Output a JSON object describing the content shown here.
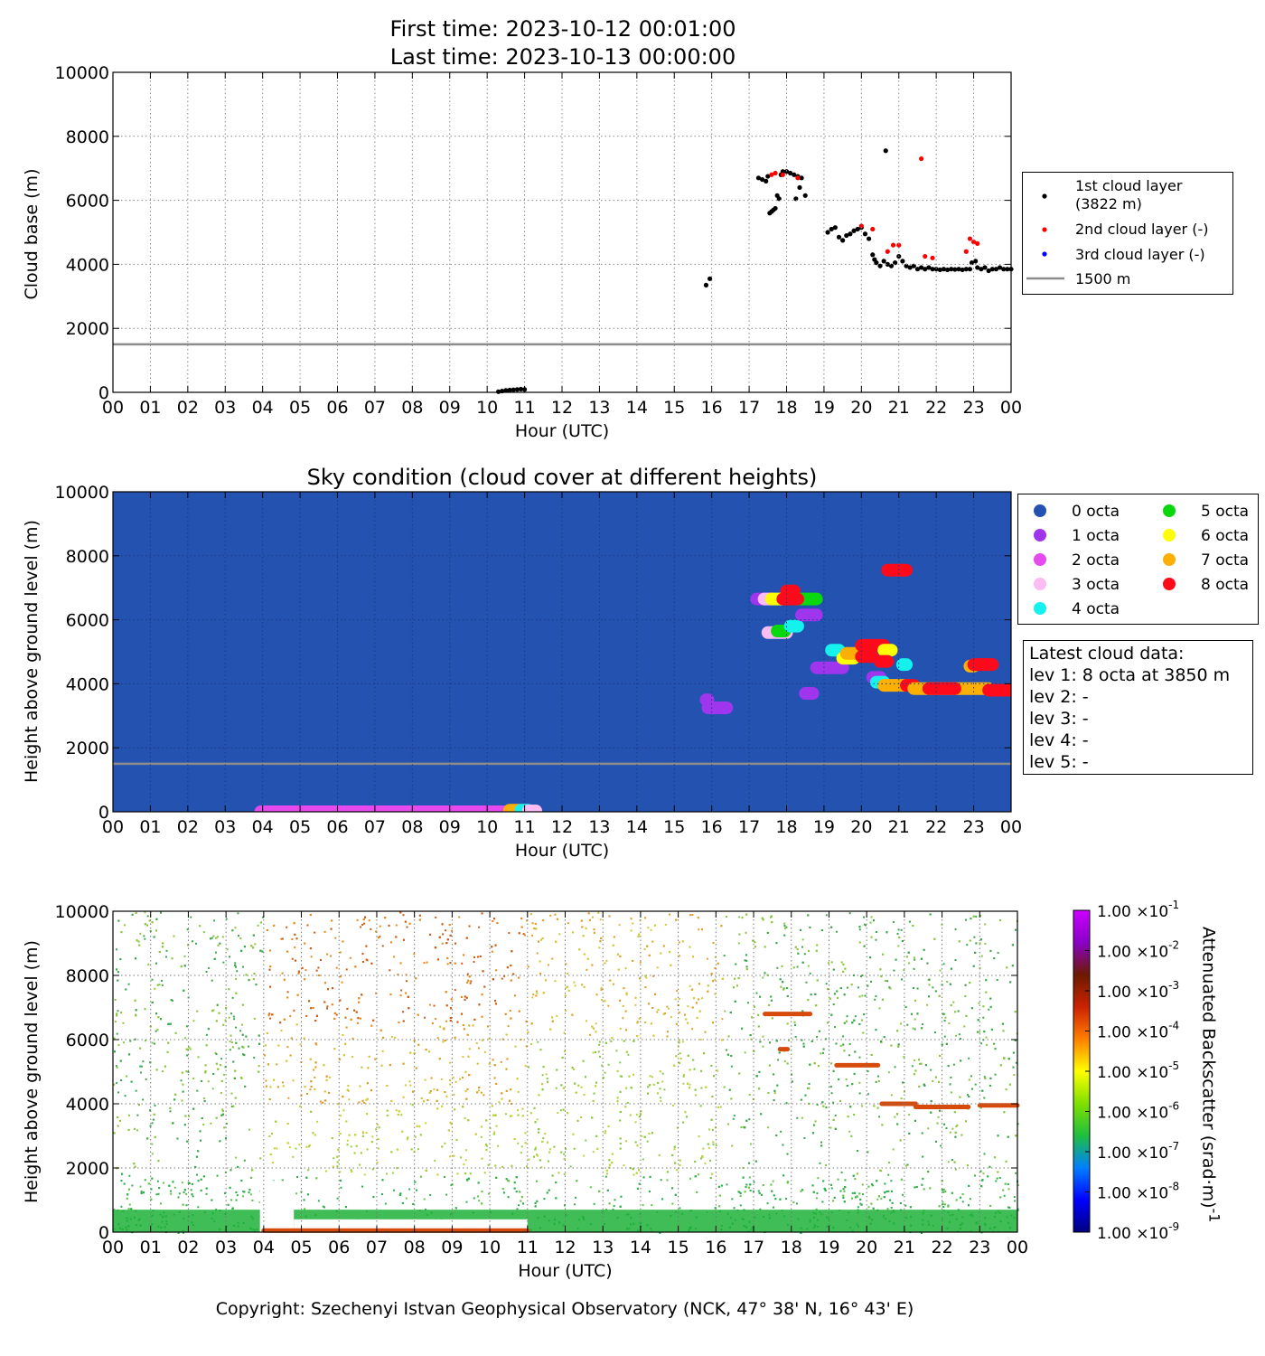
{
  "header": {
    "first_time": "First time: 2023-10-12 00:01:00",
    "last_time": "Last time: 2023-10-13 00:00:00"
  },
  "colors": {
    "sky_background": "#2452b0",
    "threshold_line": "#8c8c8c",
    "layer1": "#000000",
    "layer2": "#ff0000",
    "layer3": "#0000ff"
  },
  "chart_data": [
    {
      "type": "scatter",
      "title": "",
      "xlabel": "Hour (UTC)",
      "ylabel": "Cloud base (m)",
      "xlim": [
        0,
        24
      ],
      "ylim": [
        0,
        10000
      ],
      "x_ticks": [
        "00",
        "01",
        "02",
        "03",
        "04",
        "05",
        "06",
        "07",
        "08",
        "09",
        "10",
        "11",
        "12",
        "13",
        "14",
        "15",
        "16",
        "17",
        "18",
        "19",
        "20",
        "21",
        "22",
        "23",
        "00"
      ],
      "y_ticks": [
        0,
        2000,
        4000,
        6000,
        8000,
        10000
      ],
      "grid": true,
      "legend_placement": "right",
      "threshold": 1500,
      "series": [
        {
          "name": "1st cloud layer\n(3822 m)",
          "color": "#000000",
          "points": [
            [
              10.3,
              20
            ],
            [
              10.4,
              40
            ],
            [
              10.5,
              60
            ],
            [
              10.6,
              70
            ],
            [
              10.7,
              80
            ],
            [
              10.8,
              90
            ],
            [
              10.9,
              100
            ],
            [
              11.0,
              90
            ],
            [
              15.85,
              3350
            ],
            [
              15.95,
              3550
            ],
            [
              17.25,
              6700
            ],
            [
              17.35,
              6650
            ],
            [
              17.45,
              6600
            ],
            [
              17.5,
              6750
            ],
            [
              17.55,
              5600
            ],
            [
              17.6,
              5650
            ],
            [
              17.65,
              5700
            ],
            [
              17.7,
              5750
            ],
            [
              17.75,
              6150
            ],
            [
              17.8,
              6050
            ],
            [
              17.85,
              6800
            ],
            [
              17.9,
              6900
            ],
            [
              18.0,
              6900
            ],
            [
              18.1,
              6850
            ],
            [
              18.2,
              6800
            ],
            [
              18.25,
              6050
            ],
            [
              18.3,
              6750
            ],
            [
              18.35,
              6400
            ],
            [
              18.4,
              6700
            ],
            [
              18.5,
              6150
            ],
            [
              19.1,
              5000
            ],
            [
              19.2,
              5100
            ],
            [
              19.3,
              5150
            ],
            [
              19.4,
              4850
            ],
            [
              19.5,
              4750
            ],
            [
              19.6,
              4900
            ],
            [
              19.7,
              4950
            ],
            [
              19.8,
              5050
            ],
            [
              19.9,
              5100
            ],
            [
              20.0,
              5150
            ],
            [
              20.1,
              4950
            ],
            [
              20.2,
              4800
            ],
            [
              20.3,
              4300
            ],
            [
              20.35,
              4150
            ],
            [
              20.4,
              4050
            ],
            [
              20.5,
              3950
            ],
            [
              20.6,
              4100
            ],
            [
              20.65,
              7550
            ],
            [
              20.7,
              4000
            ],
            [
              20.8,
              3950
            ],
            [
              20.9,
              4050
            ],
            [
              21.0,
              4250
            ],
            [
              21.1,
              4100
            ],
            [
              21.2,
              3950
            ],
            [
              21.3,
              3900
            ],
            [
              21.4,
              3950
            ],
            [
              21.5,
              3850
            ],
            [
              21.6,
              3900
            ],
            [
              21.7,
              3850
            ],
            [
              21.8,
              3900
            ],
            [
              21.9,
              3850
            ],
            [
              22.0,
              3850
            ],
            [
              22.1,
              3830
            ],
            [
              22.2,
              3850
            ],
            [
              22.3,
              3830
            ],
            [
              22.4,
              3850
            ],
            [
              22.5,
              3840
            ],
            [
              22.6,
              3850
            ],
            [
              22.7,
              3830
            ],
            [
              22.8,
              3850
            ],
            [
              22.9,
              3850
            ],
            [
              22.95,
              4050
            ],
            [
              23.05,
              4100
            ],
            [
              23.1,
              3900
            ],
            [
              23.2,
              3850
            ],
            [
              23.3,
              3900
            ],
            [
              23.4,
              3800
            ],
            [
              23.5,
              3850
            ],
            [
              23.6,
              3850
            ],
            [
              23.7,
              3900
            ],
            [
              23.8,
              3850
            ],
            [
              23.9,
              3850
            ],
            [
              24.0,
              3850
            ]
          ]
        },
        {
          "name": "2nd cloud layer (-)",
          "color": "#ff0000",
          "points": [
            [
              17.6,
              6800
            ],
            [
              17.7,
              6850
            ],
            [
              17.9,
              6800
            ],
            [
              18.3,
              6700
            ],
            [
              20.0,
              5200
            ],
            [
              20.3,
              5100
            ],
            [
              20.7,
              4400
            ],
            [
              20.85,
              4600
            ],
            [
              21.0,
              4600
            ],
            [
              21.6,
              7300
            ],
            [
              21.7,
              4250
            ],
            [
              21.9,
              4200
            ],
            [
              22.8,
              4400
            ],
            [
              22.9,
              4800
            ],
            [
              23.0,
              4700
            ],
            [
              23.1,
              4650
            ]
          ]
        },
        {
          "name": "3rd cloud layer (-)",
          "color": "#0000ff",
          "points": []
        },
        {
          "name": "1500 m",
          "color": "#8c8c8c",
          "line_y": 1500
        }
      ]
    },
    {
      "type": "scatter",
      "title": "Sky condition (cloud cover at different heights)",
      "xlabel": "Hour (UTC)",
      "ylabel": "Height above ground level (m)",
      "xlim": [
        0,
        24
      ],
      "ylim": [
        0,
        10000
      ],
      "x_ticks": [
        "00",
        "01",
        "02",
        "03",
        "04",
        "05",
        "06",
        "07",
        "08",
        "09",
        "10",
        "11",
        "12",
        "13",
        "14",
        "15",
        "16",
        "17",
        "18",
        "19",
        "20",
        "21",
        "22",
        "23",
        "00"
      ],
      "y_ticks": [
        0,
        2000,
        4000,
        6000,
        8000,
        10000
      ],
      "grid": true,
      "legend_placement": "right",
      "threshold": 1500,
      "octa_legend": [
        {
          "label": "0 octa",
          "color": "#2452b0"
        },
        {
          "label": "1 octa",
          "color": "#a035ee"
        },
        {
          "label": "2 octa",
          "color": "#e649ee"
        },
        {
          "label": "3 octa",
          "color": "#fbbcf3"
        },
        {
          "label": "4 octa",
          "color": "#15f2ee"
        },
        {
          "label": "5 octa",
          "color": "#0ad80e"
        },
        {
          "label": "6 octa",
          "color": "#fdfd03"
        },
        {
          "label": "7 octa",
          "color": "#fcb005"
        },
        {
          "label": "8 octa",
          "color": "#ff0a1a"
        }
      ],
      "segments": [
        {
          "x0": 3.95,
          "x1": 11.0,
          "y": 0,
          "octa": 2
        },
        {
          "x0": 10.6,
          "x1": 11.0,
          "y": 50,
          "octa": 7
        },
        {
          "x0": 10.9,
          "x1": 11.1,
          "y": 50,
          "octa": 4
        },
        {
          "x0": 11.1,
          "x1": 11.3,
          "y": 30,
          "octa": 3
        },
        {
          "x0": 15.85,
          "x1": 15.9,
          "y": 3500,
          "octa": 1
        },
        {
          "x0": 15.9,
          "x1": 16.4,
          "y": 3250,
          "octa": 1
        },
        {
          "x0": 17.2,
          "x1": 17.6,
          "y": 6650,
          "octa": 1
        },
        {
          "x0": 17.4,
          "x1": 17.6,
          "y": 6650,
          "octa": 3
        },
        {
          "x0": 17.6,
          "x1": 17.9,
          "y": 6650,
          "octa": 6
        },
        {
          "x0": 17.5,
          "x1": 18.0,
          "y": 5600,
          "octa": 3
        },
        {
          "x0": 17.75,
          "x1": 17.95,
          "y": 5650,
          "octa": 5
        },
        {
          "x0": 18.1,
          "x1": 18.3,
          "y": 5800,
          "octa": 4
        },
        {
          "x0": 18.3,
          "x1": 18.8,
          "y": 6650,
          "octa": 5
        },
        {
          "x0": 18.4,
          "x1": 18.8,
          "y": 6150,
          "octa": 1
        },
        {
          "x0": 17.9,
          "x1": 18.3,
          "y": 6650,
          "octa": 8
        },
        {
          "x0": 18.0,
          "x1": 18.2,
          "y": 6900,
          "octa": 8
        },
        {
          "x0": 18.5,
          "x1": 18.7,
          "y": 3700,
          "octa": 1
        },
        {
          "x0": 18.8,
          "x1": 19.5,
          "y": 4500,
          "octa": 1
        },
        {
          "x0": 19.2,
          "x1": 19.4,
          "y": 5050,
          "octa": 4
        },
        {
          "x0": 19.5,
          "x1": 19.8,
          "y": 4800,
          "octa": 6
        },
        {
          "x0": 19.6,
          "x1": 20.1,
          "y": 4950,
          "octa": 7
        },
        {
          "x0": 20.0,
          "x1": 20.6,
          "y": 5200,
          "octa": 8
        },
        {
          "x0": 20.0,
          "x1": 20.3,
          "y": 4850,
          "octa": 8
        },
        {
          "x0": 20.6,
          "x1": 20.8,
          "y": 5050,
          "octa": 6
        },
        {
          "x0": 20.3,
          "x1": 20.5,
          "y": 4200,
          "octa": 1
        },
        {
          "x0": 20.4,
          "x1": 20.6,
          "y": 4050,
          "octa": 4
        },
        {
          "x0": 20.5,
          "x1": 20.7,
          "y": 4700,
          "octa": 8
        },
        {
          "x0": 20.6,
          "x1": 21.2,
          "y": 3950,
          "octa": 7
        },
        {
          "x0": 21.1,
          "x1": 21.2,
          "y": 4600,
          "octa": 4
        },
        {
          "x0": 20.7,
          "x1": 21.2,
          "y": 7550,
          "octa": 8
        },
        {
          "x0": 21.2,
          "x1": 21.4,
          "y": 3950,
          "octa": 8
        },
        {
          "x0": 21.4,
          "x1": 23.4,
          "y": 3850,
          "octa": 7
        },
        {
          "x0": 21.8,
          "x1": 22.5,
          "y": 3850,
          "octa": 8
        },
        {
          "x0": 22.9,
          "x1": 23.0,
          "y": 4550,
          "octa": 7
        },
        {
          "x0": 23.0,
          "x1": 23.5,
          "y": 4600,
          "octa": 8
        },
        {
          "x0": 23.4,
          "x1": 24.0,
          "y": 3800,
          "octa": 8
        }
      ]
    },
    {
      "type": "heatmap",
      "title": "",
      "xlabel": "Hour (UTC)",
      "ylabel": "Height above ground level (m)",
      "xlim": [
        0,
        24
      ],
      "ylim": [
        0,
        10000
      ],
      "x_ticks": [
        "00",
        "01",
        "02",
        "03",
        "04",
        "05",
        "06",
        "07",
        "08",
        "09",
        "10",
        "11",
        "12",
        "13",
        "14",
        "15",
        "16",
        "17",
        "18",
        "19",
        "20",
        "21",
        "22",
        "23",
        "00"
      ],
      "y_ticks": [
        0,
        2000,
        4000,
        6000,
        8000,
        10000
      ],
      "grid": true,
      "colorbar_label": "Attenuated Backscatter (srad·m)",
      "colorbar_label_exponent": "-1",
      "colorbar_ticks": [
        "1.00 ×10",
        "1.00 ×10",
        "1.00 ×10",
        "1.00 ×10",
        "1.00 ×10",
        "1.00 ×10",
        "1.00 ×10",
        "1.00 ×10",
        "1.00 ×10"
      ],
      "colorbar_exponents": [
        "-1",
        "-2",
        "-3",
        "-4",
        "-5",
        "-6",
        "-7",
        "-8",
        "-9"
      ],
      "colorbar_colors": [
        "#00007f",
        "#0000ff",
        "#007fff",
        "#1fbf3f",
        "#7fe000",
        "#ffff00",
        "#ff7f00",
        "#cc2200",
        "#6b1a00",
        "#8a00c8",
        "#cc00ff"
      ],
      "cloud_traces": [
        {
          "x0": 17.3,
          "x1": 18.5,
          "y": 6800
        },
        {
          "x0": 17.7,
          "x1": 17.9,
          "y": 5700
        },
        {
          "x0": 19.2,
          "x1": 20.3,
          "y": 5200
        },
        {
          "x0": 20.4,
          "x1": 21.3,
          "y": 4000
        },
        {
          "x0": 21.3,
          "x1": 22.7,
          "y": 3900
        },
        {
          "x0": 23.0,
          "x1": 24.0,
          "y": 3950
        },
        {
          "x0": 4.0,
          "x1": 11.0,
          "y": 50
        }
      ]
    }
  ],
  "legend1": {
    "items": [
      {
        "label_line1": "1st cloud layer",
        "label_line2": "(3822 m)"
      },
      {
        "label_line1": "2nd cloud layer (-)"
      },
      {
        "label_line1": "3rd cloud layer (-)"
      },
      {
        "label_line1": "1500 m"
      }
    ]
  },
  "info": {
    "title": "Latest cloud data:",
    "lev1": "lev 1: 8 octa at 3850 m",
    "lev2": "lev 2: -",
    "lev3": "lev 3: -",
    "lev4": "lev 4: -",
    "lev5": "lev 5: -"
  },
  "footer": {
    "copyright": "Copyright: Szechenyi Istvan Geophysical Observatory (NCK, 47° 38' N, 16° 43' E)"
  }
}
